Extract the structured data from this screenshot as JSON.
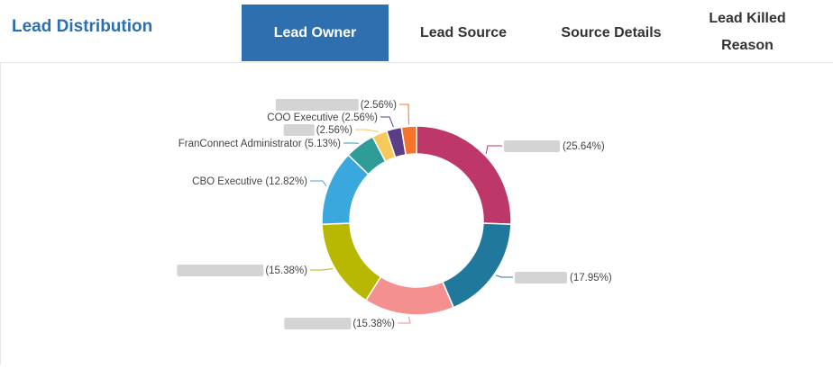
{
  "header": {
    "title": "Lead Distribution",
    "tabs": [
      {
        "label": "Lead Owner",
        "active": true
      },
      {
        "label": "Lead Source",
        "active": false
      },
      {
        "label": "Source Details",
        "active": false
      },
      {
        "label": "Lead Killed Reason",
        "active": false
      }
    ]
  },
  "colors": {
    "accent": "#2e6fb0",
    "title": "#2a6fb0"
  },
  "chart_data": {
    "type": "pie",
    "donut": true,
    "slices": [
      {
        "name": "",
        "label": "(25.64%)",
        "value": 25.64,
        "color": "#bd3768",
        "redacted": true,
        "redact_width": 62
      },
      {
        "name": "",
        "label": "(17.95%)",
        "value": 17.95,
        "color": "#21789d",
        "redacted": true,
        "redact_width": 58
      },
      {
        "name": "",
        "label": "(15.38%)",
        "value": 15.38,
        "color": "#f59090",
        "redacted": true,
        "redact_width": 74
      },
      {
        "name": "",
        "label": "(15.38%)",
        "value": 15.38,
        "color": "#b8b701",
        "redacted": true,
        "redact_width": 96
      },
      {
        "name": "CBO Executive",
        "label": "CBO Executive (12.82%)",
        "value": 12.82,
        "color": "#3aa8dd",
        "redacted": false
      },
      {
        "name": "FranConnect Administrator",
        "label": "FranConnect Administrator (5.13%)",
        "value": 5.13,
        "color": "#2e9d97",
        "redacted": false
      },
      {
        "name": "",
        "label": "(2.56%)",
        "value": 2.56,
        "color": "#f7c95b",
        "redacted": true,
        "redact_width": 34
      },
      {
        "name": "COO Executive",
        "label": "COO Executive (2.56%)",
        "value": 2.56,
        "color": "#5a3e87",
        "redacted": false
      },
      {
        "name": "",
        "label": "(2.56%)",
        "value": 2.56,
        "color": "#f3742a",
        "redacted": true,
        "redact_width": 92
      }
    ]
  }
}
